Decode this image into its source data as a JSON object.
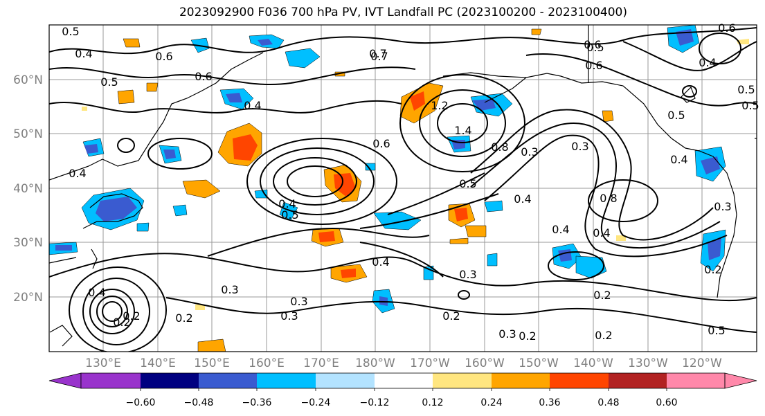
{
  "title": "2023092900 F036 700 hPa PV, IVT Landfall PC (2023100200 - 2023100400)",
  "lat_labels": [
    "60°N",
    "50°N",
    "40°N",
    "30°N",
    "20°N"
  ],
  "lon_labels": [
    "130°E",
    "140°E",
    "150°E",
    "160°E",
    "170°E",
    "180°W",
    "170°W",
    "160°W",
    "150°W",
    "140°W",
    "130°W",
    "120°W"
  ],
  "colorbar": {
    "colors": [
      "#9933cc",
      "#000080",
      "#3a5bd0",
      "#00bfff",
      "#b3e3ff",
      "#ffffff",
      "#ffe680",
      "#ffa500",
      "#ff4500",
      "#b22222",
      "#ff88aa"
    ],
    "tick_labels": [
      "−0.60",
      "−0.48",
      "−0.36",
      "−0.24",
      "−0.12",
      "0.12",
      "0.24",
      "0.36",
      "0.48",
      "0.60"
    ]
  },
  "contour_labels": [
    "0.5",
    "0.4",
    "0.6",
    "0.5",
    "0.6",
    "0.7",
    "0.6",
    "0.5",
    "0.4",
    "0.6",
    "0.5",
    "1.2",
    "1.4",
    "0.6",
    "0.8",
    "0.5",
    "0.4",
    "0.3",
    "0.3",
    "0.4",
    "0.5",
    "0.4",
    "0.8",
    "0.4",
    "0.4",
    "0.3",
    "0.4",
    "0.2",
    "0.3",
    "0.3",
    "0.2",
    "0.2",
    "0.3",
    "0.2",
    "0.3",
    "0.2",
    "0.2",
    "0.5",
    "0.5",
    "0.4",
    "0.4",
    "0.2",
    "0.3",
    "0.2",
    "0.7",
    "0.5",
    "0.4",
    "0.6"
  ],
  "pv_contour_levels": [
    0.2,
    0.3,
    0.4,
    0.5,
    0.6,
    0.7,
    0.8,
    1.2,
    1.4
  ]
}
